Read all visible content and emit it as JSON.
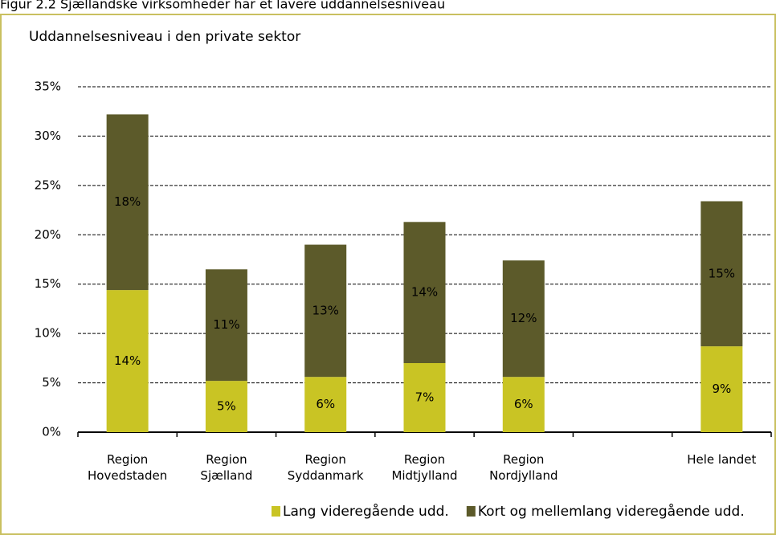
{
  "page_title": "Figur 2.2 Sjællandske virksomheder har et lavere uddannelsesniveau",
  "chart_data": {
    "type": "stacked_bar",
    "title": "Uddannelsesniveau i den private sektor",
    "categories": [
      "Region Hovedstaden",
      "Region Sjælland",
      "Region Syddanmark",
      "Region Midtjylland",
      "Region Nordjylland",
      null,
      "Hele landet"
    ],
    "series": [
      {
        "name": "Lang videregående udd.",
        "color": "#c9c424",
        "values": [
          14.4,
          5.2,
          5.6,
          7.0,
          5.6,
          null,
          8.7
        ],
        "value_labels": [
          "14%",
          "5%",
          "6%",
          "7%",
          "6%",
          null,
          "9%"
        ]
      },
      {
        "name": "Kort og mellemlang videregående udd.",
        "color": "#5c5a2a",
        "values": [
          17.8,
          11.3,
          13.4,
          14.3,
          11.8,
          null,
          14.7
        ],
        "value_labels": [
          "18%",
          "11%",
          "13%",
          "14%",
          "12%",
          null,
          "15%"
        ]
      }
    ],
    "ylim": [
      0,
      35
    ],
    "yticks": [
      {
        "value": 0,
        "label": "0%"
      },
      {
        "value": 5,
        "label": "5%"
      },
      {
        "value": 10,
        "label": "10%"
      },
      {
        "value": 15,
        "label": "15%"
      },
      {
        "value": 20,
        "label": "20%"
      },
      {
        "value": 25,
        "label": "25%"
      },
      {
        "value": 30,
        "label": "30%"
      },
      {
        "value": 35,
        "label": "35%"
      }
    ],
    "grid": true,
    "legend": "bottom"
  }
}
